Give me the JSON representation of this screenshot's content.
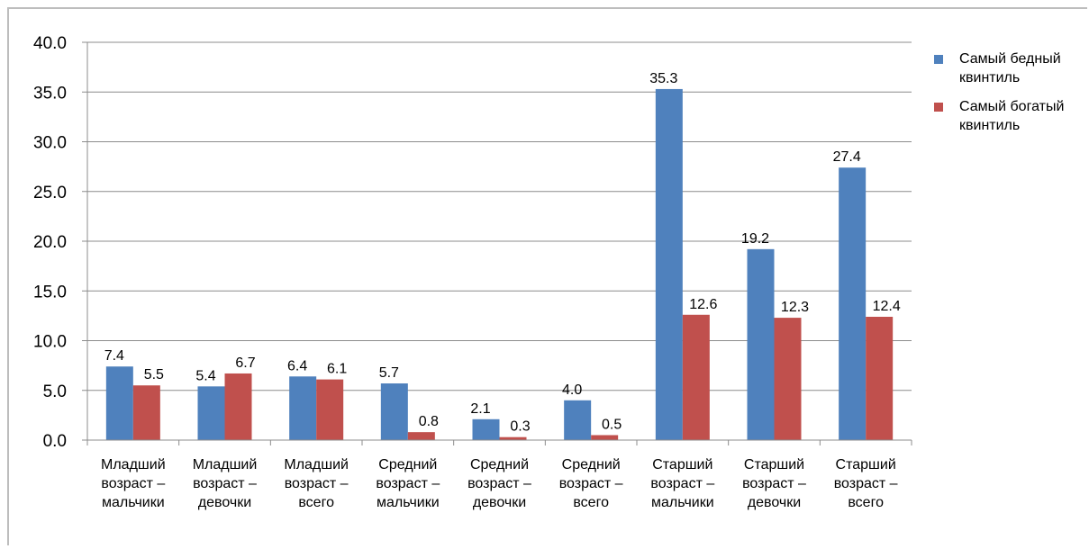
{
  "chart_data": {
    "type": "bar",
    "categories": [
      [
        "Младший",
        "возраст –",
        "мальчики"
      ],
      [
        "Младший",
        "возраст –",
        "девочки"
      ],
      [
        "Младший",
        "возраст –",
        "всего"
      ],
      [
        "Средний",
        "возраст –",
        "мальчики"
      ],
      [
        "Средний",
        "возраст –",
        "девочки"
      ],
      [
        "Средний",
        "возраст –",
        "всего"
      ],
      [
        "Старший",
        "возраст –",
        "мальчики"
      ],
      [
        "Старший",
        "возраст –",
        "девочки"
      ],
      [
        "Старший",
        "возраст –",
        "всего"
      ]
    ],
    "series": [
      {
        "name": "Самый бедный квинтиль",
        "legend_lines": [
          "Самый бедный",
          "квинтиль"
        ],
        "color": "#4f81bd",
        "values": [
          7.4,
          5.4,
          6.4,
          5.7,
          2.1,
          4.0,
          35.3,
          19.2,
          27.4
        ],
        "labels": [
          "7.4",
          "5.4",
          "6.4",
          "5.7",
          "2.1",
          "4.0",
          "35.3",
          "19.2",
          "27.4"
        ]
      },
      {
        "name": "Самый богатый квинтиль",
        "legend_lines": [
          "Самый богатый",
          "квинтиль"
        ],
        "color": "#c0504d",
        "values": [
          5.5,
          6.7,
          6.1,
          0.8,
          0.3,
          0.5,
          12.6,
          12.3,
          12.4
        ],
        "labels": [
          "5.5",
          "6.7",
          "6.1",
          "0.8",
          "0.3",
          "0.5",
          "12.6",
          "12.3",
          "12.4"
        ]
      }
    ],
    "ylim": [
      0,
      40
    ],
    "yticks": [
      "0.0",
      "5.0",
      "10.0",
      "15.0",
      "20.0",
      "25.0",
      "30.0",
      "35.0",
      "40.0"
    ],
    "grid": true,
    "legend_position": "top-right",
    "title": "",
    "xlabel": "",
    "ylabel": ""
  }
}
